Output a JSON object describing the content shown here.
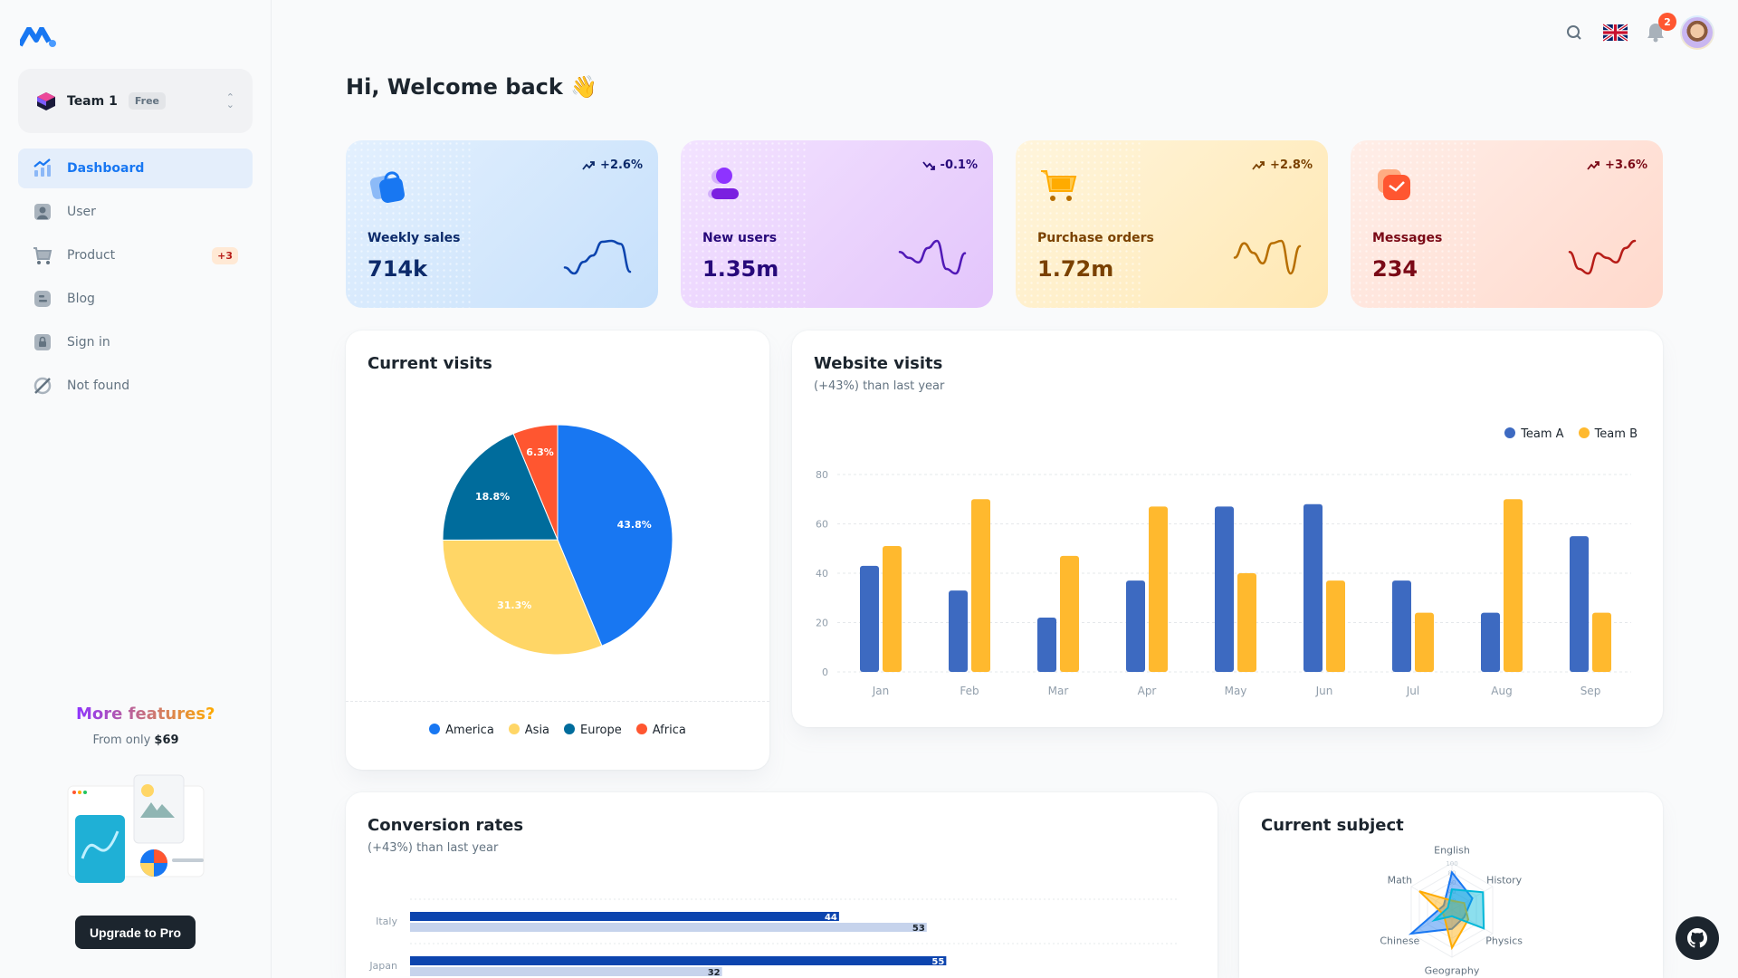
{
  "sidebar": {
    "team": {
      "name": "Team 1",
      "plan": "Free"
    },
    "items": [
      {
        "label": "Dashboard",
        "icon": "chart-icon",
        "active": true
      },
      {
        "label": "User",
        "icon": "user-icon"
      },
      {
        "label": "Product",
        "icon": "cart-icon",
        "badge": "+3"
      },
      {
        "label": "Blog",
        "icon": "blog-icon"
      },
      {
        "label": "Sign in",
        "icon": "lock-icon"
      },
      {
        "label": "Not found",
        "icon": "disabled-icon"
      }
    ],
    "promo": {
      "title": "More features?",
      "from": "From only",
      "price": "$69",
      "button": "Upgrade to Pro"
    }
  },
  "header": {
    "notifications": "2",
    "language": "English (UK)"
  },
  "page": {
    "title": "Hi, Welcome back 👋"
  },
  "stats": [
    {
      "label": "Weekly sales",
      "value": "714k",
      "trend": "+2.6%",
      "direction": "up",
      "color": "#0c44ae",
      "text": "#0c2a6a",
      "bg": "linear-gradient(135deg,#e3f0fe,#c6e0fb)",
      "sparkline": [
        22,
        8,
        35,
        50,
        82,
        84,
        77,
        12
      ]
    },
    {
      "label": "New users",
      "value": "1.35m",
      "trend": "-0.1%",
      "direction": "down",
      "color": "#5119b7",
      "text": "#27097a",
      "bg": "linear-gradient(135deg,#f3e3ff,#e3c5fb)",
      "sparkline": [
        56,
        47,
        40,
        62,
        73,
        30,
        23,
        54
      ]
    },
    {
      "label": "Purchase orders",
      "value": "1.72m",
      "trend": "+2.8%",
      "direction": "up",
      "color": "#b76e00",
      "text": "#7a4100",
      "bg": "linear-gradient(135deg,#fff5dc,#ffe8b3)",
      "sparkline": [
        40,
        70,
        50,
        28,
        70,
        75,
        7,
        64
      ]
    },
    {
      "label": "Messages",
      "value": "234",
      "trend": "+3.6%",
      "direction": "up",
      "color": "#b71d18",
      "text": "#7a0916",
      "bg": "linear-gradient(135deg,#ffeee8,#ffd9cc)",
      "sparkline": [
        56,
        30,
        23,
        54,
        47,
        40,
        62,
        73
      ]
    }
  ],
  "chart_data": [
    {
      "type": "pie",
      "title": "Current visits",
      "categories": [
        "America",
        "Asia",
        "Europe",
        "Africa"
      ],
      "values": [
        43.8,
        31.3,
        18.8,
        6.3
      ],
      "labels": [
        "43.8%",
        "31.3%",
        "18.8%",
        "6.3%"
      ],
      "colors": [
        "#1877f2",
        "#ffd666",
        "#006c9c",
        "#ff5630"
      ],
      "legend": "bottom"
    },
    {
      "type": "bar",
      "title": "Website visits",
      "subtitle": "(+43%) than last year",
      "categories": [
        "Jan",
        "Feb",
        "Mar",
        "Apr",
        "May",
        "Jun",
        "Jul",
        "Aug",
        "Sep"
      ],
      "series": [
        {
          "name": "Team A",
          "values": [
            43,
            33,
            22,
            37,
            67,
            68,
            37,
            24,
            55
          ],
          "color": "#3d6ac1"
        },
        {
          "name": "Team B",
          "values": [
            51,
            70,
            47,
            67,
            40,
            37,
            24,
            70,
            24
          ],
          "color": "#ffb92e"
        }
      ],
      "ylim": [
        0,
        80
      ],
      "yticks": [
        0,
        20,
        40,
        60,
        80
      ],
      "grid": true,
      "legend": "top-right"
    },
    {
      "type": "bar",
      "orientation": "horizontal",
      "title": "Conversion rates",
      "subtitle": "(+43%) than last year",
      "categories": [
        "Italy",
        "Japan"
      ],
      "series": [
        {
          "values": [
            44,
            55
          ],
          "color": "#0c44ae"
        },
        {
          "values": [
            53,
            32
          ],
          "color": "#c6d3ec"
        }
      ]
    },
    {
      "type": "radar",
      "title": "Current subject",
      "axes": [
        "English",
        "History",
        "Physics",
        "Geography",
        "Chinese",
        "Math"
      ],
      "rticks": [
        20,
        40,
        60,
        80,
        100
      ],
      "series": [
        {
          "values": [
            80,
            50,
            30,
            40,
            100,
            20
          ],
          "color": "#1877f2"
        },
        {
          "values": [
            20,
            30,
            40,
            80,
            20,
            80
          ],
          "color": "#ffab00"
        },
        {
          "values": [
            44,
            76,
            78,
            13,
            43,
            10
          ],
          "color": "#00b8d9"
        }
      ]
    }
  ]
}
